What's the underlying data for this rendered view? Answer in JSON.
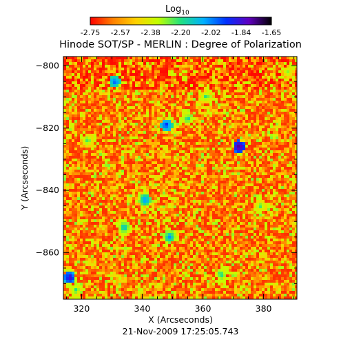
{
  "chart_data": {
    "type": "heatmap",
    "title": "Hinode SOT/SP - MERLIN : Degree of Polarization",
    "colorbar": {
      "label": "Log",
      "label_subscript": "10",
      "tick_labels": [
        "-2.75",
        "-2.57",
        "-2.38",
        "-2.20",
        "-2.02",
        "-1.84",
        "-1.65"
      ],
      "range": [
        -2.75,
        -1.65
      ],
      "colormap": [
        "#ff0000",
        "#ff8000",
        "#ffd000",
        "#c0ff00",
        "#20e080",
        "#00b0ff",
        "#0030ff",
        "#6000c0",
        "#000000"
      ]
    },
    "xlabel": "X (Arcseconds)",
    "ylabel": "Y (Arcseconds)",
    "xlim": [
      314,
      391
    ],
    "ylim": [
      -875,
      -797
    ],
    "x_ticks": [
      320,
      340,
      360,
      380
    ],
    "y_ticks": [
      -800,
      -820,
      -840,
      -860
    ],
    "timestamp": "21-Nov-2009 17:25:05.743",
    "hot_spots": [
      {
        "x": 322,
        "y": -824,
        "value": -2.2
      },
      {
        "x": 331,
        "y": -805,
        "value": -1.95
      },
      {
        "x": 334,
        "y": -852,
        "value": -2.1
      },
      {
        "x": 341,
        "y": -843,
        "value": -2.0
      },
      {
        "x": 348,
        "y": -819,
        "value": -1.9
      },
      {
        "x": 349,
        "y": -855,
        "value": -2.05
      },
      {
        "x": 355,
        "y": -817,
        "value": -2.15
      },
      {
        "x": 361,
        "y": -810,
        "value": -2.2
      },
      {
        "x": 372,
        "y": -826,
        "value": -1.7
      },
      {
        "x": 366,
        "y": -867,
        "value": -2.15
      },
      {
        "x": 316,
        "y": -868,
        "value": -1.8
      },
      {
        "x": 318,
        "y": -872,
        "value": -2.2
      },
      {
        "x": 388,
        "y": -802,
        "value": -2.25
      },
      {
        "x": 379,
        "y": -845,
        "value": -2.2
      }
    ]
  }
}
